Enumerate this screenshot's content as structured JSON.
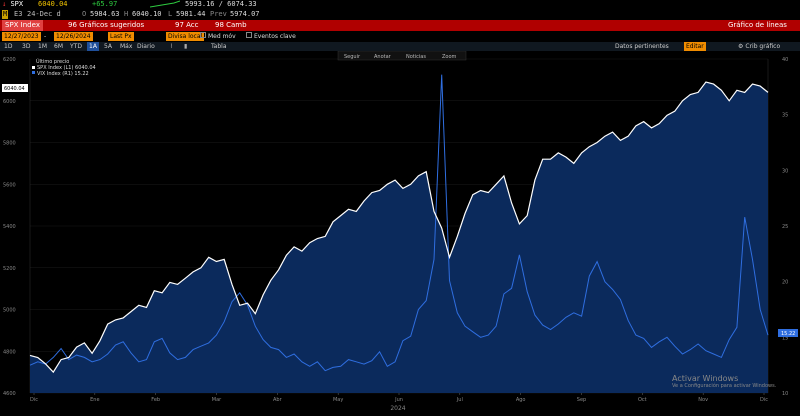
{
  "quote": {
    "row1": {
      "ticker": "SPX",
      "last_prefix": "↓",
      "last": "6040.04",
      "change": "+65.97",
      "range": "5993.16 / 6074.33"
    },
    "row2": {
      "badge": "M",
      "code": "E3",
      "date": "24-Dec d",
      "open_label": "O",
      "open": "5984.63",
      "high_label": "H",
      "high": "6040.10",
      "low_label": "L",
      "low": "5981.44",
      "prev_label": "Prev",
      "prev": "5974.07"
    }
  },
  "toolbar": {
    "security": "SPX Index",
    "suggested": "96 Gráficos sugeridos",
    "actions": "97 Acc",
    "change": "98 Camb",
    "chart_type": "Gráfico de líneas"
  },
  "settings": {
    "start_date": "12/27/2023",
    "end_date": "12/26/2024",
    "field": "Last Px",
    "currency": "Divisa local",
    "moving_avg": "Med móv",
    "events": "Eventos clave"
  },
  "periods": {
    "items": [
      "1D",
      "3D",
      "1M",
      "6M",
      "YTD",
      "1A",
      "5A",
      "Máx",
      "Diario"
    ],
    "selected": "1A",
    "table": "Tabla",
    "related": "Datos pertinentes",
    "edit": "Editar",
    "chart_settings": "Crib gráfico"
  },
  "legend": {
    "title": "Último precio",
    "entries": [
      {
        "label": "SPX Index (L1) 6040.04",
        "color": "#ffffff"
      },
      {
        "label": "VIX Index (R1) 15.22",
        "color": "#2f6ee0"
      }
    ]
  },
  "chart_toolbar": [
    "Seguir",
    "Anotar",
    "Noticias",
    "Zoom"
  ],
  "badges": {
    "left": "6040.04",
    "right": "15.22"
  },
  "watermark": {
    "line1": "Activar Windows",
    "line2": "Ve a Configuración para activar Windows."
  },
  "colors": {
    "spx_line": "#ffffff",
    "spx_fill": "#0b2a5c",
    "vix_line": "#2f6ee0",
    "header_red": "#b00000",
    "accent_orange": "#f08c00",
    "up_green": "#2ecc40"
  },
  "chart_data": {
    "type": "area",
    "x_ticks": [
      "Dic",
      "Ene",
      "Feb",
      "Mar",
      "Abr",
      "May",
      "Jun",
      "Jul",
      "Ago",
      "Sep",
      "Oct",
      "Nov",
      "Dic"
    ],
    "x_year": "2024",
    "left_axis": {
      "ticks": [
        "6200",
        "6000",
        "5800",
        "5600",
        "5400",
        "5200",
        "5000",
        "4800",
        "4600"
      ],
      "ylim": [
        4600,
        6200
      ]
    },
    "right_axis": {
      "ticks": [
        "40",
        "35",
        "30",
        "25",
        "20",
        "15",
        "10"
      ],
      "ylim": [
        10,
        40
      ]
    },
    "series": [
      {
        "name": "SPX Index (L1)",
        "axis": "left",
        "values": [
          4780,
          4770,
          4740,
          4700,
          4760,
          4770,
          4820,
          4840,
          4790,
          4850,
          4930,
          4950,
          4960,
          4990,
          5020,
          5010,
          5090,
          5080,
          5130,
          5120,
          5150,
          5180,
          5200,
          5250,
          5230,
          5240,
          5120,
          5020,
          5030,
          4980,
          5070,
          5140,
          5190,
          5260,
          5300,
          5280,
          5320,
          5340,
          5350,
          5420,
          5450,
          5480,
          5470,
          5520,
          5560,
          5570,
          5600,
          5620,
          5580,
          5600,
          5640,
          5660,
          5470,
          5390,
          5250,
          5350,
          5460,
          5550,
          5570,
          5560,
          5600,
          5640,
          5510,
          5410,
          5450,
          5620,
          5720,
          5720,
          5750,
          5730,
          5700,
          5750,
          5780,
          5800,
          5830,
          5850,
          5810,
          5830,
          5880,
          5900,
          5870,
          5890,
          5930,
          5950,
          6000,
          6030,
          6040,
          6090,
          6080,
          6050,
          6000,
          6050,
          6040,
          6080,
          6070,
          6040
        ]
      },
      {
        "name": "VIX Index (R1)",
        "axis": "right",
        "values": [
          12.5,
          12.8,
          12.6,
          13.2,
          14.0,
          13.0,
          13.4,
          13.2,
          12.8,
          13.0,
          13.5,
          14.3,
          14.6,
          13.6,
          12.8,
          13.0,
          14.6,
          14.9,
          13.6,
          13.0,
          13.2,
          13.9,
          14.2,
          14.5,
          15.2,
          16.4,
          18.2,
          19.0,
          17.9,
          16.0,
          14.8,
          14.1,
          13.9,
          13.2,
          13.5,
          12.8,
          12.4,
          12.8,
          12.0,
          12.3,
          12.4,
          13.0,
          12.8,
          12.6,
          12.9,
          13.7,
          12.4,
          12.8,
          14.7,
          15.1,
          17.5,
          18.3,
          22.0,
          38.6,
          20.1,
          17.2,
          16.0,
          15.5,
          15.0,
          15.2,
          16.0,
          18.9,
          19.4,
          22.4,
          19.1,
          17.0,
          16.1,
          15.7,
          16.2,
          16.8,
          17.2,
          16.9,
          20.5,
          21.8,
          20.0,
          19.3,
          18.4,
          16.5,
          15.2,
          14.9,
          14.1,
          14.6,
          15.0,
          14.2,
          13.5,
          13.9,
          14.4,
          13.8,
          13.5,
          13.2,
          14.8,
          15.9,
          25.8,
          22.0,
          17.5,
          15.2
        ]
      }
    ]
  }
}
